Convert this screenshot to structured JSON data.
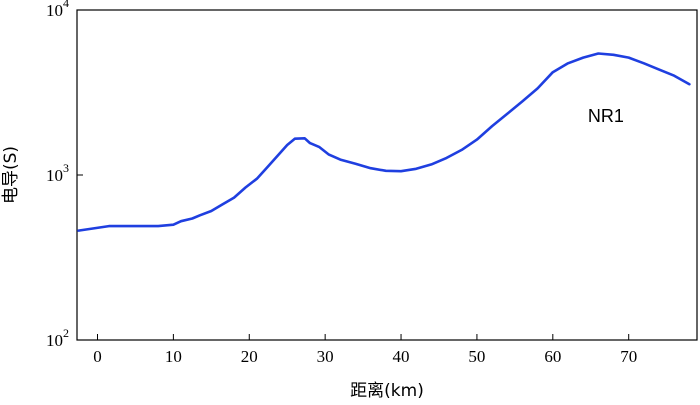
{
  "chart_data": {
    "type": "line",
    "title": "",
    "xlabel": "距离(km)",
    "ylabel": "电导(S)",
    "xlim": [
      -2.7,
      79
    ],
    "ylim": [
      100,
      10000
    ],
    "y_scale": "log",
    "grid": false,
    "x_ticks": [
      0,
      10,
      20,
      30,
      40,
      50,
      60,
      70
    ],
    "y_ticks": [
      {
        "value": 100,
        "base": "10",
        "exp": "2"
      },
      {
        "value": 1000,
        "base": "10",
        "exp": "3"
      },
      {
        "value": 10000,
        "base": "10",
        "exp": "4"
      }
    ],
    "series": [
      {
        "color": "#1f3fe0",
        "points": [
          [
            -2.5,
            460
          ],
          [
            1.5,
            490
          ],
          [
            5,
            490
          ],
          [
            8,
            490
          ],
          [
            10,
            500
          ],
          [
            11,
            525
          ],
          [
            12.5,
            545
          ],
          [
            13.5,
            570
          ],
          [
            15,
            605
          ],
          [
            16.5,
            665
          ],
          [
            18,
            730
          ],
          [
            19.5,
            840
          ],
          [
            21,
            950
          ],
          [
            22.5,
            1130
          ],
          [
            24,
            1350
          ],
          [
            25,
            1520
          ],
          [
            26,
            1660
          ],
          [
            27.3,
            1670
          ],
          [
            28,
            1560
          ],
          [
            29.2,
            1480
          ],
          [
            30.5,
            1330
          ],
          [
            32,
            1240
          ],
          [
            34,
            1170
          ],
          [
            36,
            1100
          ],
          [
            38,
            1060
          ],
          [
            40,
            1055
          ],
          [
            42,
            1090
          ],
          [
            44,
            1160
          ],
          [
            46,
            1270
          ],
          [
            48,
            1420
          ],
          [
            50,
            1640
          ],
          [
            52,
            1980
          ],
          [
            54,
            2350
          ],
          [
            56,
            2800
          ],
          [
            58,
            3350
          ],
          [
            60,
            4200
          ],
          [
            62,
            4750
          ],
          [
            64,
            5150
          ],
          [
            66,
            5450
          ],
          [
            68,
            5350
          ],
          [
            70,
            5150
          ],
          [
            72,
            4750
          ],
          [
            74,
            4350
          ],
          [
            76,
            4000
          ],
          [
            78,
            3550
          ]
        ]
      }
    ],
    "annotations": [
      {
        "text": "NR1",
        "x": 67,
        "y": 2100
      }
    ]
  }
}
